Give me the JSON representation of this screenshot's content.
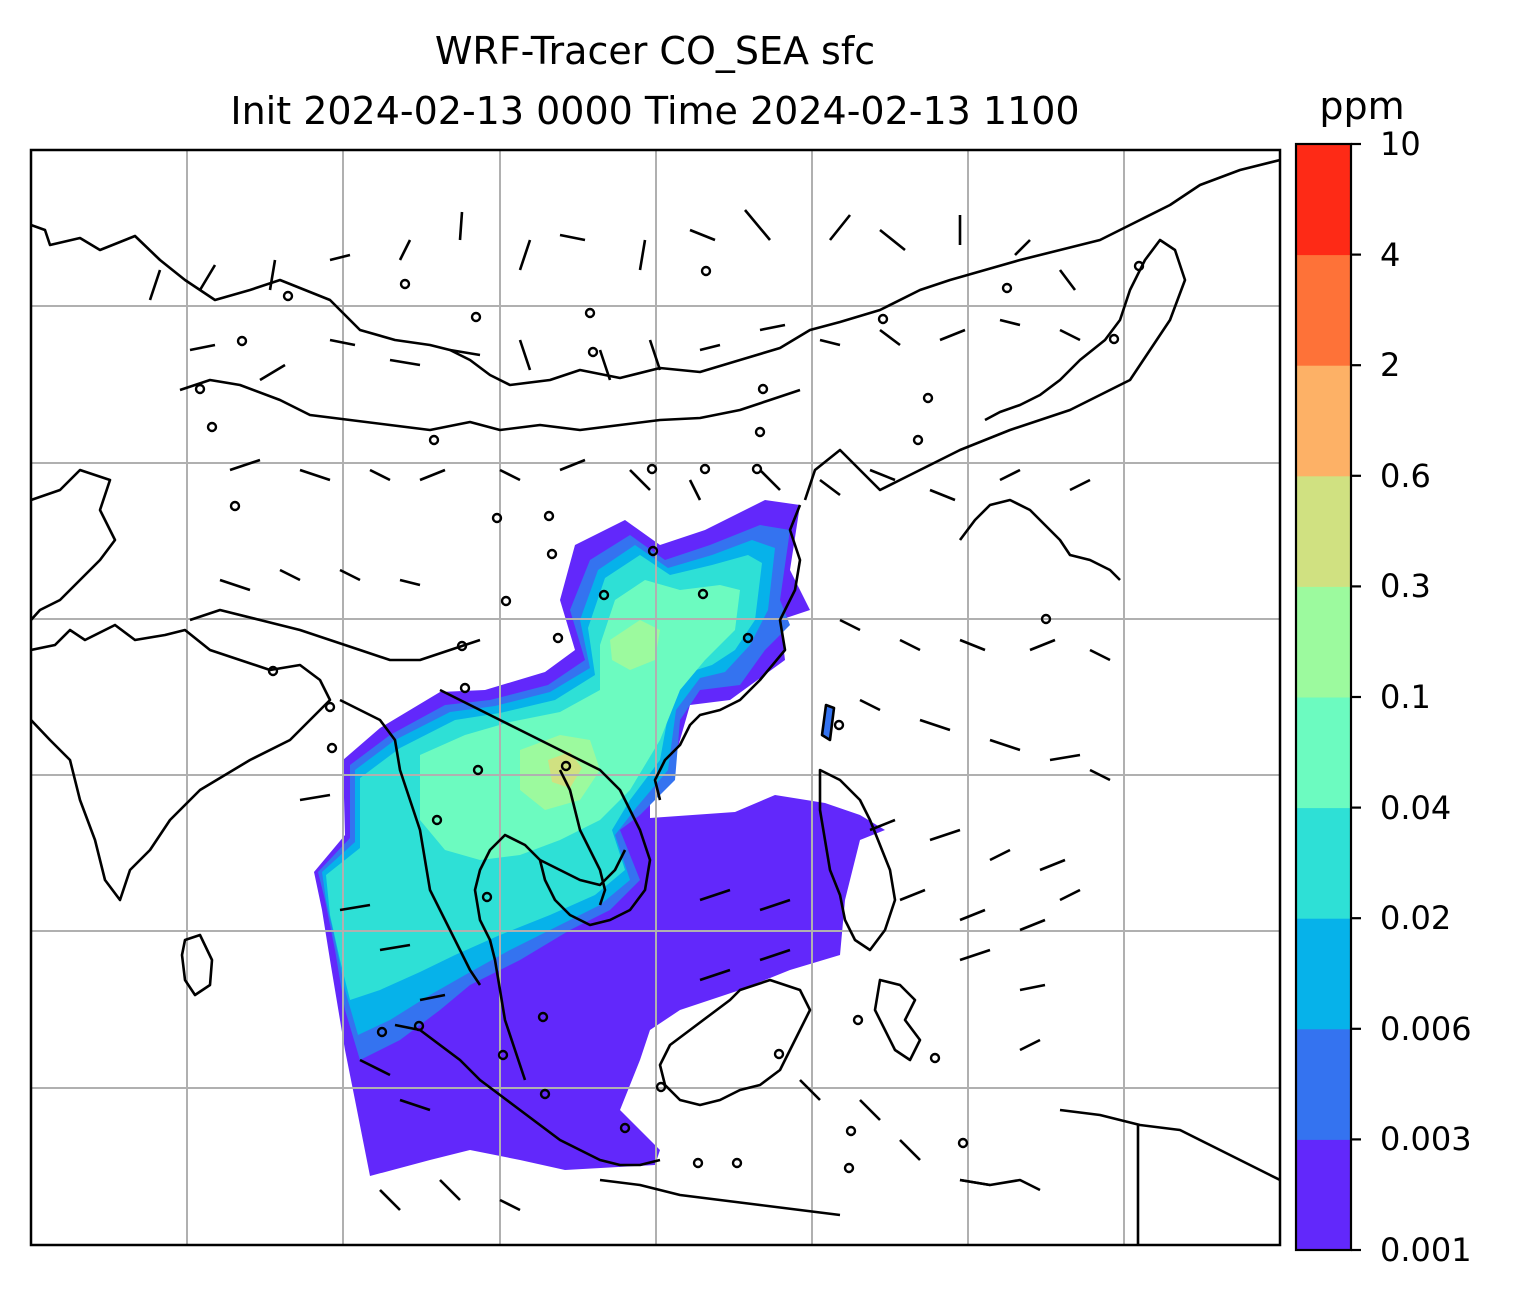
{
  "title": {
    "line1": "WRF-Tracer CO_SEA sfc",
    "line2": "Init 2024-02-13 0000 Time 2024-02-13 1100"
  },
  "colorbar": {
    "unit": "ppm",
    "levels": [
      "0.001",
      "0.003",
      "0.006",
      "0.02",
      "0.04",
      "0.1",
      "0.3",
      "0.6",
      "2",
      "4",
      "10"
    ],
    "colors": [
      "#6228fb",
      "#3473f0",
      "#06b2ea",
      "#2ee0d6",
      "#6cfbc0",
      "#9cfa9e",
      "#d0e181",
      "#fdb166",
      "#fe7238",
      "#fe2a16"
    ]
  },
  "map": {
    "grid": "on",
    "coastline_color": "#000000",
    "grid_color": "#b0b0b0",
    "wind_barbs": "on"
  }
}
